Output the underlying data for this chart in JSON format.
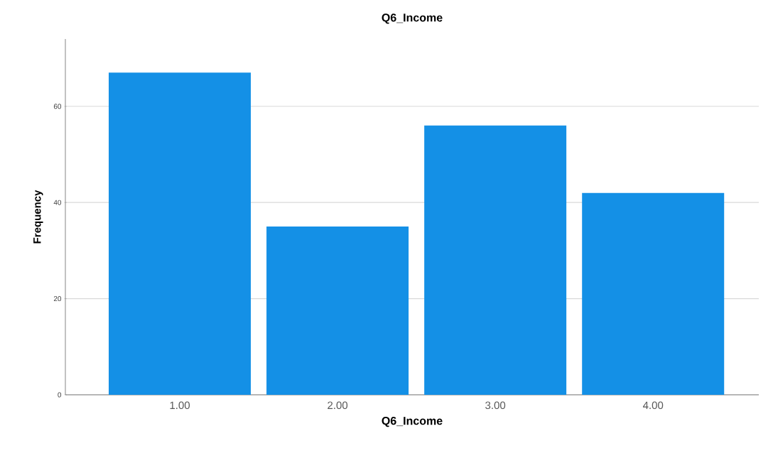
{
  "chart_data": {
    "type": "bar",
    "title": "Q6_Income",
    "xlabel": "Q6_Income",
    "ylabel": "Frequency",
    "categories": [
      "1.00",
      "2.00",
      "3.00",
      "4.00"
    ],
    "values": [
      67,
      35,
      56,
      42
    ],
    "color": "#1490e6",
    "ylim": [
      0,
      74
    ],
    "yticks": [
      0,
      20,
      40,
      60
    ],
    "grid": "y"
  }
}
